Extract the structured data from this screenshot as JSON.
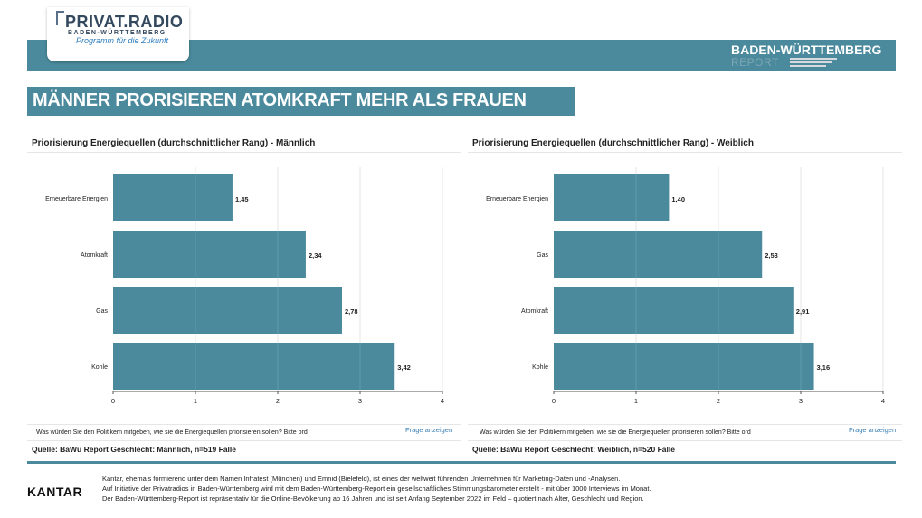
{
  "brand": {
    "name": "PRIVAT.RADIO",
    "region": "BADEN-WÜRTTEMBERG",
    "tagline": "Programm für die Zukunft"
  },
  "report_badge": {
    "title": "BADEN-WÜRTTEMBERG",
    "subtitle": "REPORT"
  },
  "headline": "MÄNNER PRORISIEREN ATOMKRAFT MEHR ALS FRAUEN",
  "colors": {
    "accent": "#4a8a9c",
    "bar": "#4a8a9c",
    "link": "#3a7fb5"
  },
  "panels": [
    {
      "title": "Priorisierung Energiequellen (durchschnittlicher Rang) - Männlich",
      "question": "Was würden Sie den Politikern mitgeben, wie sie die Energiequellen priorisieren sollen? Bitte ord",
      "link": "Frage anzeigen",
      "source": "Quelle: BaWü Report Geschlecht: Männlich, n=519 Fälle"
    },
    {
      "title": "Priorisierung Energiequellen (durchschnittlicher Rang) - Weiblich",
      "question": "Was würden Sie den Politikern mitgeben, wie sie die Energiequellen priorisieren sollen? Bitte ord",
      "link": "Frage anzeigen",
      "source": "Quelle: BaWü Report Geschlecht: Weiblich, n=520 Fälle"
    }
  ],
  "chart_data": [
    {
      "type": "bar",
      "orientation": "horizontal",
      "title": "Priorisierung Energiequellen (durchschnittlicher Rang) - Männlich",
      "categories": [
        "Erneuerbare Energien",
        "Atomkraft",
        "Gas",
        "Kohle"
      ],
      "values": [
        1.45,
        2.34,
        2.78,
        3.42
      ],
      "value_labels": [
        "1,45",
        "2,34",
        "2,78",
        "3,42"
      ],
      "xlim": [
        0,
        4
      ],
      "ticks": [
        "0",
        "1",
        "2",
        "3",
        "4"
      ],
      "grid": true
    },
    {
      "type": "bar",
      "orientation": "horizontal",
      "title": "Priorisierung Energiequellen (durchschnittlicher Rang) - Weiblich",
      "categories": [
        "Erneuerbare Energien",
        "Gas",
        "Atomkraft",
        "Kohle"
      ],
      "values": [
        1.4,
        2.53,
        2.91,
        3.16
      ],
      "value_labels": [
        "1,40",
        "2,53",
        "2,91",
        "3,16"
      ],
      "xlim": [
        0,
        4
      ],
      "ticks": [
        "0",
        "1",
        "2",
        "3",
        "4"
      ],
      "grid": true
    }
  ],
  "footer": {
    "logo": "KANTAR",
    "lines": [
      "Kantar, ehemals formierend unter dem Namen Infratest (München) und Emnid (Bielefeld), ist eines der weltweit führenden Unternehmen für Marketing-Daten und -Analysen.",
      "Auf Initiative der Privatradios in Baden-Württemberg wird mit dem Baden-Württemberg-Report ein gesellschaftliches Stimmungsbarometer erstellt - mit über 1000 Interviews im Monat.",
      "Der Baden-Württemberg-Report ist repräsentativ für die Online-Bevölkerung ab 16 Jahren und ist seit Anfang September 2022 im Feld – quotiert nach Alter, Geschlecht und Region."
    ]
  }
}
